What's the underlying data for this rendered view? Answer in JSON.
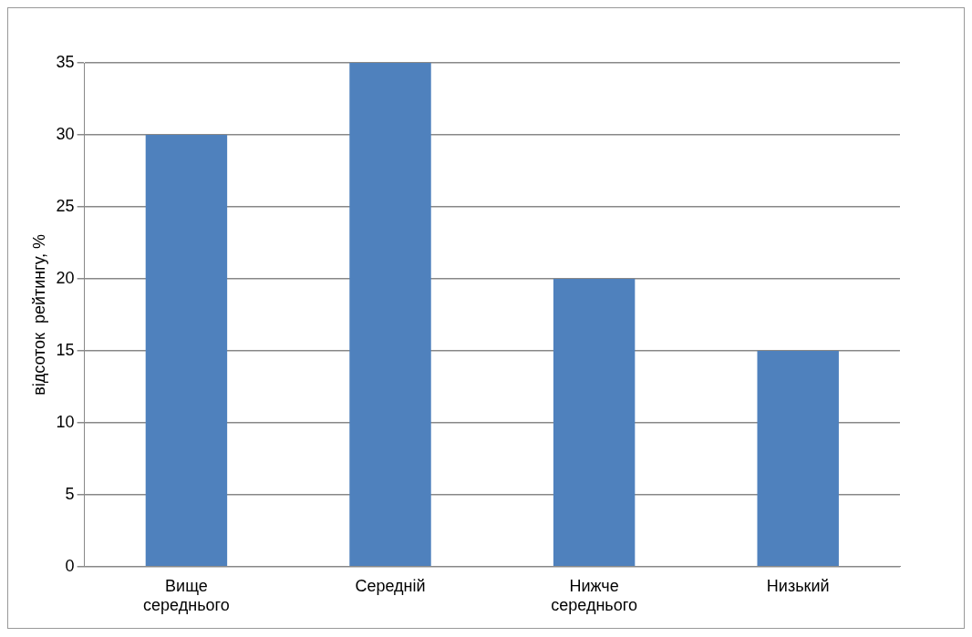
{
  "chart_data": {
    "type": "bar",
    "ylabel": "відсоток  рейтингу, %",
    "categories": [
      "Вище середнього",
      "Середній",
      "Нижче середнього",
      "Низький"
    ],
    "values": [
      30,
      35,
      20,
      15
    ],
    "color": "#4f81bd",
    "ylim": [
      0,
      35
    ],
    "yticks": [
      0,
      5,
      10,
      15,
      20,
      25,
      30,
      35
    ],
    "grid": "y",
    "legend": false
  }
}
